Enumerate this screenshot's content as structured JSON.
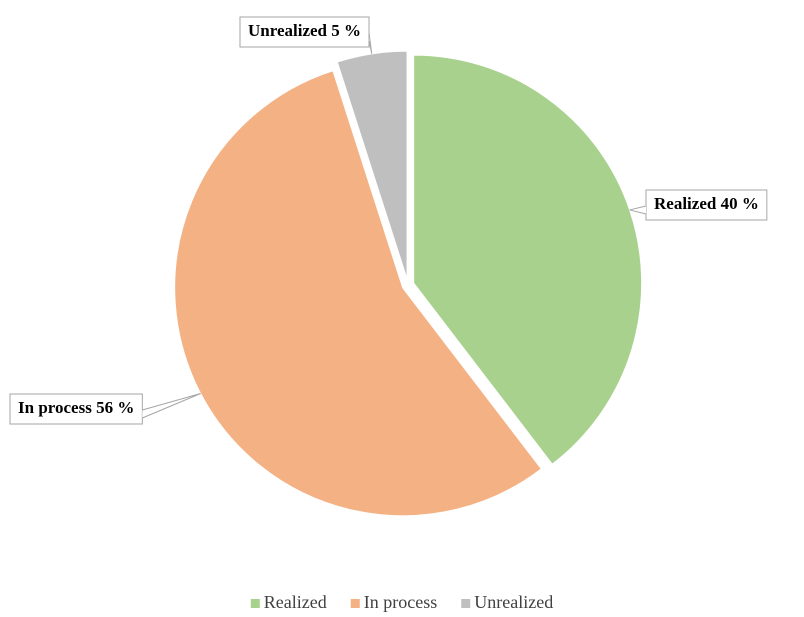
{
  "chart_data": {
    "type": "pie",
    "categories": [
      "Realized",
      "In process",
      "Unrealized"
    ],
    "values": [
      40,
      56,
      5
    ],
    "value_labels": [
      "Realized 40 %",
      "In process 56 %",
      "Unrealized 5 %"
    ],
    "colors": [
      "#a9d18e",
      "#f4b183",
      "#bfbfbf"
    ],
    "legend": "bottom"
  }
}
